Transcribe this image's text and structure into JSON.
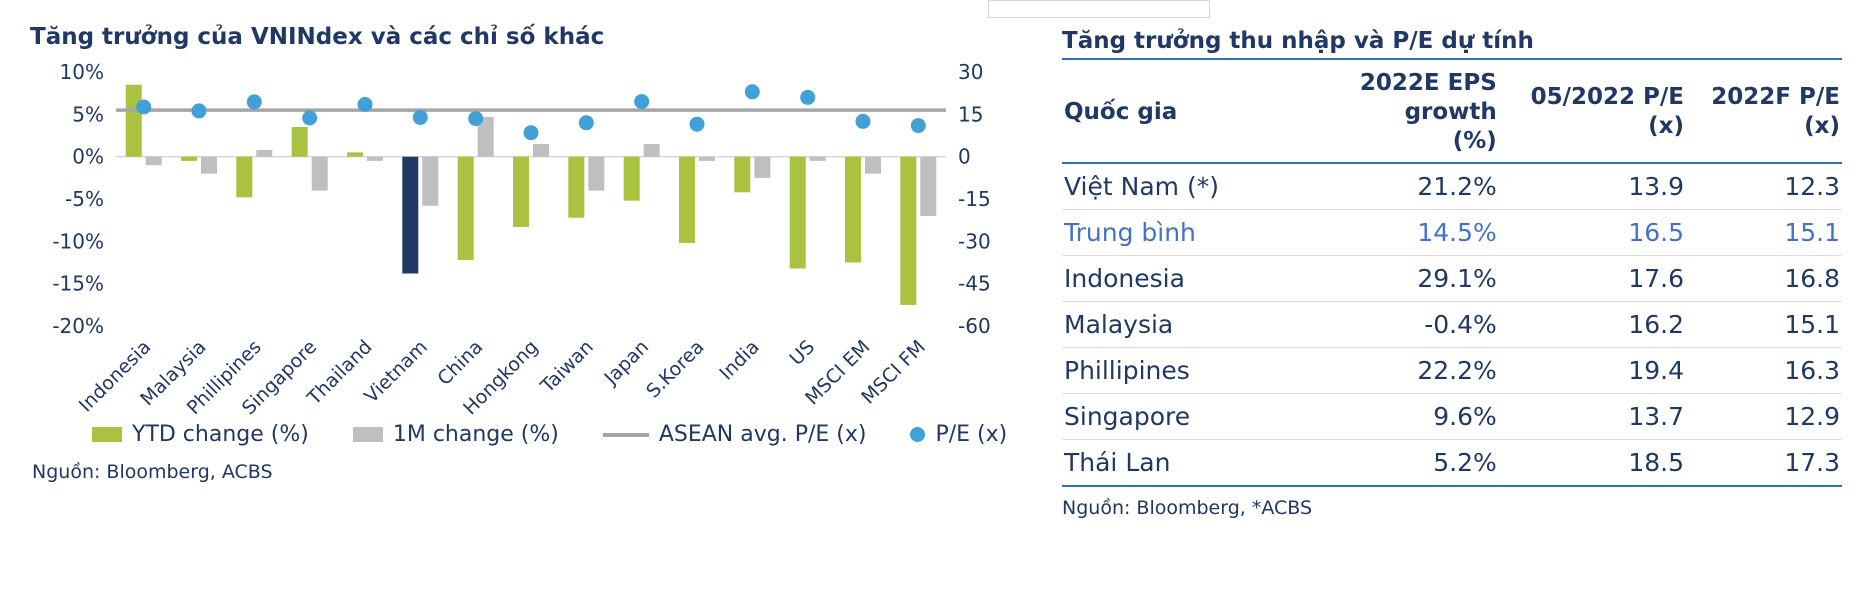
{
  "colors": {
    "navy": "#1F3864",
    "green": "#A9C23F",
    "gray_bar": "#BFBFBF",
    "dot_blue": "#41A0D8",
    "line_gray": "#A6A6A6",
    "table_blue": "#2E74B5",
    "muted_row_blue": "#4472C4"
  },
  "chart_data": [
    {
      "type": "bar",
      "title": "Tăng trưởng của VNINdex và các chỉ số khác",
      "categories": [
        "Indonesia",
        "Malaysia",
        "Phillipines",
        "Singapore",
        "Thailand",
        "Vietnam",
        "China",
        "Hongkong",
        "Taiwan",
        "Japan",
        "S.Korea",
        "India",
        "US",
        "MSCI EM",
        "MSCI FM"
      ],
      "series": [
        {
          "name": "YTD change (%)",
          "type": "bar",
          "axis": "left",
          "color": "#A9C23F",
          "highlight_category": "Vietnam",
          "highlight_color": "#1F3864",
          "values": [
            8.5,
            -0.5,
            -4.8,
            3.5,
            0.5,
            -13.8,
            -12.2,
            -8.3,
            -7.2,
            -5.2,
            -10.2,
            -4.2,
            -13.2,
            -12.5,
            -17.5
          ]
        },
        {
          "name": "1M change (%)",
          "type": "bar",
          "axis": "left",
          "color": "#BFBFBF",
          "values": [
            -1.0,
            -2.0,
            0.8,
            -4.0,
            -0.5,
            -5.8,
            4.7,
            1.5,
            -4.0,
            1.5,
            -0.5,
            -2.5,
            -0.5,
            -2.0,
            -7.0
          ]
        },
        {
          "name": "P/E (x)",
          "type": "scatter",
          "axis": "right",
          "color": "#41A0D8",
          "values": [
            17.6,
            16.2,
            19.4,
            13.7,
            18.5,
            13.9,
            13.5,
            8.5,
            12.0,
            19.5,
            11.5,
            23.0,
            21.0,
            12.5,
            11.0
          ]
        },
        {
          "name": "ASEAN avg. P/E (x)",
          "type": "hline",
          "axis": "right",
          "color": "#A6A6A6",
          "value": 16.5
        }
      ],
      "left_axis": {
        "min": -20,
        "max": 10,
        "tick_values": [
          10,
          5,
          0,
          -5,
          -10,
          -15,
          -20
        ],
        "tick_suffix": "%"
      },
      "right_axis": {
        "min": -60,
        "max": 30,
        "tick_values": [
          30,
          15,
          0,
          -15,
          -30,
          -45,
          -60
        ],
        "tick_suffix": ""
      },
      "grid": "off",
      "legend_position": "bottom"
    },
    {
      "type": "table",
      "title": "Tăng trưởng thu nhập và P/E dự tính",
      "columns": [
        {
          "line1": "Quốc gia",
          "line2": "",
          "align": "left"
        },
        {
          "line1": "2022E EPS growth",
          "line2": "(%)",
          "align": "right"
        },
        {
          "line1": "05/2022 P/E",
          "line2": "(x)",
          "align": "right"
        },
        {
          "line1": "2022F P/E",
          "line2": "(x)",
          "align": "right"
        }
      ],
      "rows": [
        [
          "Việt Nam (*)",
          "21.2%",
          "13.9",
          "12.3"
        ],
        [
          "Trung bình",
          "14.5%",
          "16.5",
          "15.1"
        ],
        [
          "Indonesia",
          "29.1%",
          "17.6",
          "16.8"
        ],
        [
          "Malaysia",
          "-0.4%",
          "16.2",
          "15.1"
        ],
        [
          "Phillipines",
          "22.2%",
          "19.4",
          "16.3"
        ],
        [
          "Singapore",
          "9.6%",
          "13.7",
          "12.9"
        ],
        [
          "Thái Lan",
          "5.2%",
          "18.5",
          "17.3"
        ]
      ],
      "highlight_row": 1
    }
  ],
  "left_panel": {
    "source": "Nguồn: Bloomberg, ACBS",
    "legend": [
      {
        "label": "YTD change (%)",
        "type": "bar",
        "color": "#A9C23F"
      },
      {
        "label": "1M change (%)",
        "type": "bar",
        "color": "#BFBFBF"
      },
      {
        "label": "ASEAN avg. P/E (x)",
        "type": "line",
        "color": "#A6A6A6"
      },
      {
        "label": "P/E (x)",
        "type": "dot",
        "color": "#41A0D8"
      }
    ]
  },
  "right_panel": {
    "source": "Nguồn: Bloomberg, *ACBS"
  }
}
